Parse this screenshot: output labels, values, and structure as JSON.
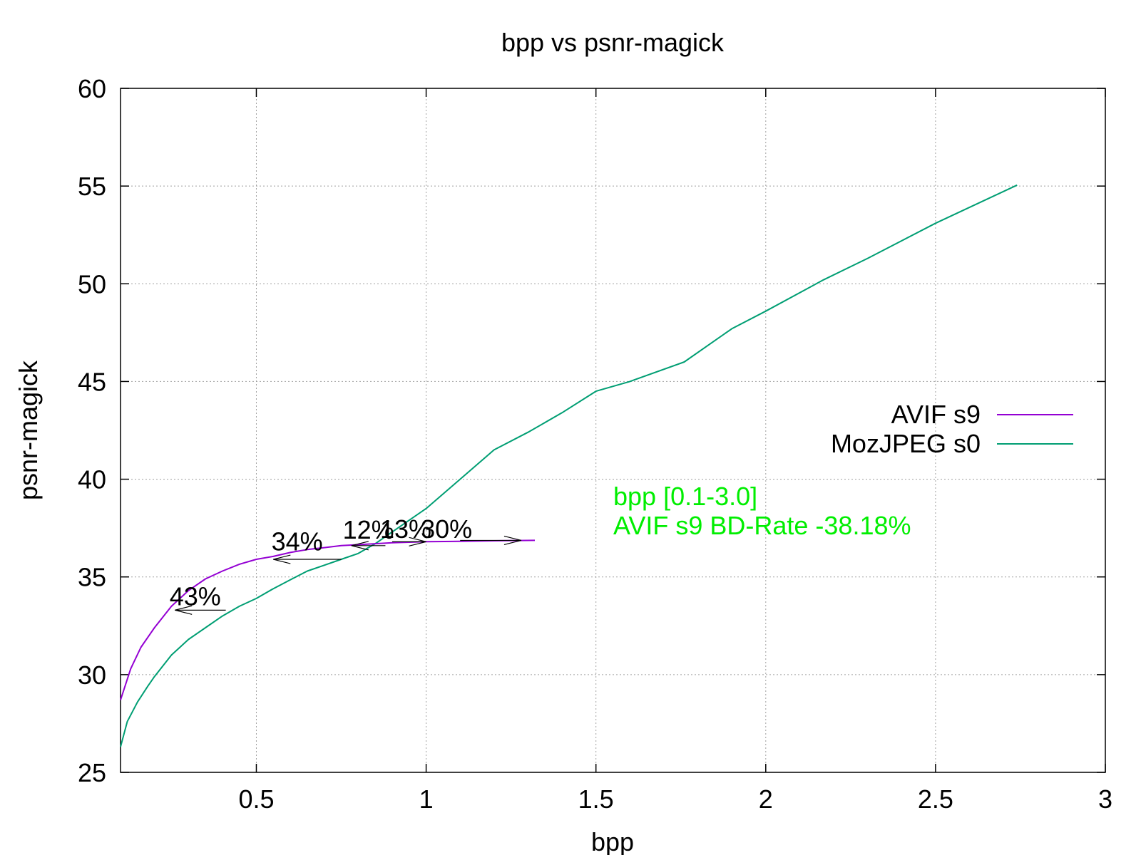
{
  "chart_data": {
    "type": "line",
    "title": "bpp vs psnr-magick",
    "xlabel": "bpp",
    "ylabel": "psnr-magick",
    "xlim": [
      0.1,
      3
    ],
    "ylim": [
      25,
      60
    ],
    "xticks": [
      0.5,
      1,
      1.5,
      2,
      2.5,
      3
    ],
    "xtick_labels": [
      "0.5",
      "1",
      "1.5",
      "2",
      "2.5",
      "3"
    ],
    "yticks": [
      25,
      30,
      35,
      40,
      45,
      50,
      55,
      60
    ],
    "ytick_labels": [
      "25",
      "30",
      "35",
      "40",
      "45",
      "50",
      "55",
      "60"
    ],
    "grid": true,
    "legend_position": "right",
    "series": [
      {
        "name": "AVIF s9",
        "color": "#9400d3",
        "x": [
          0.1,
          0.13,
          0.16,
          0.2,
          0.25,
          0.3,
          0.35,
          0.4,
          0.45,
          0.5,
          0.55,
          0.6,
          0.65,
          0.7,
          0.75,
          0.8,
          0.9,
          1.0,
          1.1,
          1.2,
          1.32
        ],
        "y": [
          28.7,
          30.3,
          31.4,
          32.4,
          33.5,
          34.3,
          34.9,
          35.3,
          35.65,
          35.9,
          36.05,
          36.25,
          36.4,
          36.5,
          36.6,
          36.65,
          36.75,
          36.8,
          36.82,
          36.85,
          36.87
        ]
      },
      {
        "name": "MozJPEG s0",
        "color": "#009e73",
        "x": [
          0.1,
          0.12,
          0.15,
          0.18,
          0.2,
          0.25,
          0.3,
          0.35,
          0.4,
          0.45,
          0.5,
          0.55,
          0.6,
          0.65,
          0.7,
          0.75,
          0.8,
          0.85,
          0.9,
          1.0,
          1.1,
          1.2,
          1.3,
          1.4,
          1.5,
          1.6,
          1.76,
          1.9,
          2.0,
          2.17,
          2.3,
          2.5,
          2.74
        ],
        "y": [
          26.3,
          27.6,
          28.6,
          29.4,
          29.9,
          31.0,
          31.8,
          32.4,
          33.0,
          33.5,
          33.9,
          34.4,
          34.85,
          35.3,
          35.6,
          35.9,
          36.2,
          36.7,
          37.3,
          38.5,
          40.0,
          41.5,
          42.4,
          43.4,
          44.5,
          45.0,
          46.0,
          47.7,
          48.6,
          50.2,
          51.3,
          53.1,
          55.05
        ]
      }
    ],
    "annotations": [
      {
        "label": "43%",
        "x": 0.32,
        "y": 33.55,
        "arrow_from_x": 0.41,
        "arrow_to_x": 0.26,
        "arrow_y": 33.3
      },
      {
        "label": "34%",
        "x": 0.62,
        "y": 36.35,
        "arrow_from_x": 0.75,
        "arrow_to_x": 0.55,
        "arrow_y": 35.9
      },
      {
        "label": "12%",
        "x": 0.83,
        "y": 36.95,
        "arrow_from_x": 0.88,
        "arrow_to_x": 0.78,
        "arrow_y": 36.6
      },
      {
        "label": "13%",
        "x": 0.94,
        "y": 37.0,
        "arrow_from_x": 0.9,
        "arrow_to_x": 1.0,
        "arrow_y": 36.8
      },
      {
        "label": "30%",
        "x": 1.06,
        "y": 37.0,
        "arrow_from_x": 1.1,
        "arrow_to_x": 1.28,
        "arrow_y": 36.87
      }
    ],
    "notes": {
      "color": "#00ee00",
      "lines": [
        "bpp [0.1-3.0]",
        "AVIF s9 BD-Rate -38.18%"
      ]
    }
  }
}
